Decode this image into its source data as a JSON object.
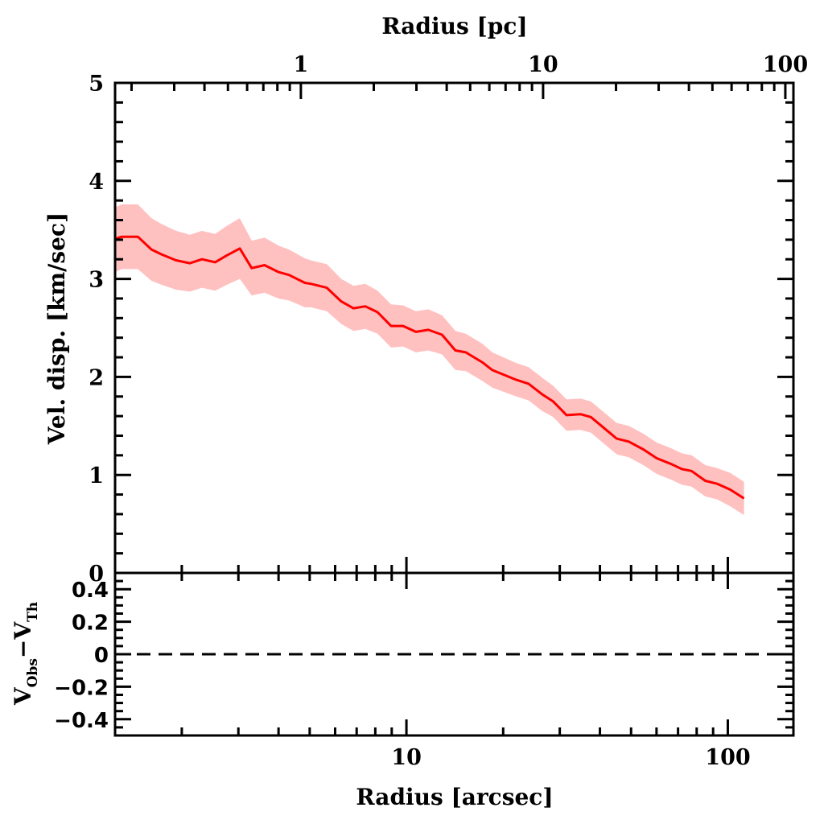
{
  "chart_data": {
    "type": "line",
    "title": "",
    "panels": [
      {
        "name": "upper",
        "ylabel": "Vel. disp. [km/sec]",
        "ylim": [
          0,
          5
        ],
        "yticks_major": [
          0,
          1,
          2,
          3,
          4,
          5
        ],
        "ytick_labels": [
          "0",
          "1",
          "2",
          "3",
          "4",
          "5"
        ],
        "yminor_step": 0.2,
        "series": [
          {
            "name": "velocity dispersion",
            "color": "#ff0000",
            "band_color": "#ffc0c0",
            "x": [
              1.21,
              1.3,
              1.46,
              1.61,
              1.73,
              1.92,
              2.12,
              2.31,
              2.54,
              2.76,
              3.03,
              3.3,
              3.62,
              4.0,
              4.31,
              4.83,
              5.04,
              5.65,
              6.27,
              6.84,
              7.45,
              8.13,
              8.96,
              9.77,
              10.7,
              11.7,
              12.9,
              14.2,
              15.3,
              17.2,
              18.5,
              22.0,
              24.0,
              26.5,
              28.6,
              31.5,
              34.8,
              37.5,
              45.1,
              49.2,
              54.6,
              60.1,
              66.8,
              71.9,
              77.1,
              85.1,
              92.7,
              101.8,
              112.3
            ],
            "y": [
              3.4,
              3.43,
              3.43,
              3.3,
              3.25,
              3.19,
              3.16,
              3.2,
              3.17,
              3.24,
              3.31,
              3.11,
              3.14,
              3.07,
              3.04,
              2.96,
              2.95,
              2.91,
              2.77,
              2.7,
              2.72,
              2.66,
              2.52,
              2.52,
              2.46,
              2.48,
              2.43,
              2.27,
              2.25,
              2.15,
              2.07,
              1.97,
              1.93,
              1.82,
              1.75,
              1.61,
              1.62,
              1.59,
              1.37,
              1.34,
              1.26,
              1.17,
              1.11,
              1.06,
              1.04,
              0.94,
              0.91,
              0.85,
              0.76
            ],
            "err": [
              0.33,
              0.33,
              0.33,
              0.32,
              0.31,
              0.3,
              0.29,
              0.29,
              0.29,
              0.3,
              0.31,
              0.28,
              0.28,
              0.27,
              0.26,
              0.25,
              0.24,
              0.24,
              0.23,
              0.23,
              0.23,
              0.22,
              0.22,
              0.21,
              0.21,
              0.21,
              0.2,
              0.2,
              0.19,
              0.19,
              0.18,
              0.17,
              0.17,
              0.17,
              0.16,
              0.16,
              0.16,
              0.16,
              0.16,
              0.16,
              0.16,
              0.16,
              0.16,
              0.16,
              0.16,
              0.16,
              0.16,
              0.17,
              0.17
            ]
          }
        ]
      },
      {
        "name": "lower",
        "ylabel_main": "V",
        "ylabel_sub1": "Obs",
        "ylabel_mid": "−V",
        "ylabel_sub2": "Th",
        "ylim": [
          -0.5,
          0.5
        ],
        "yticks_major": [
          -0.4,
          -0.2,
          0,
          0.2,
          0.4
        ],
        "ytick_labels": [
          "−0.4",
          "−0.2",
          "0",
          "0.2",
          "0.4"
        ],
        "yminor_step": 0.05,
        "reference_line": {
          "y": 0,
          "style": "dashed",
          "color": "#000000"
        }
      }
    ],
    "xaxis_bottom": {
      "label": "Radius [arcsec]",
      "scale": "log",
      "xlim": [
        1.24,
        160
      ],
      "ticks_major": [
        10,
        100
      ],
      "tick_labels": [
        "10",
        "100"
      ]
    },
    "xaxis_top": {
      "label": "Radius [pc]",
      "scale": "log",
      "xlim": [
        0.171,
        108
      ],
      "ticks_major": [
        1,
        10,
        100
      ],
      "tick_labels": [
        "1",
        "10",
        "100"
      ]
    },
    "grid": false,
    "legend": "none"
  }
}
